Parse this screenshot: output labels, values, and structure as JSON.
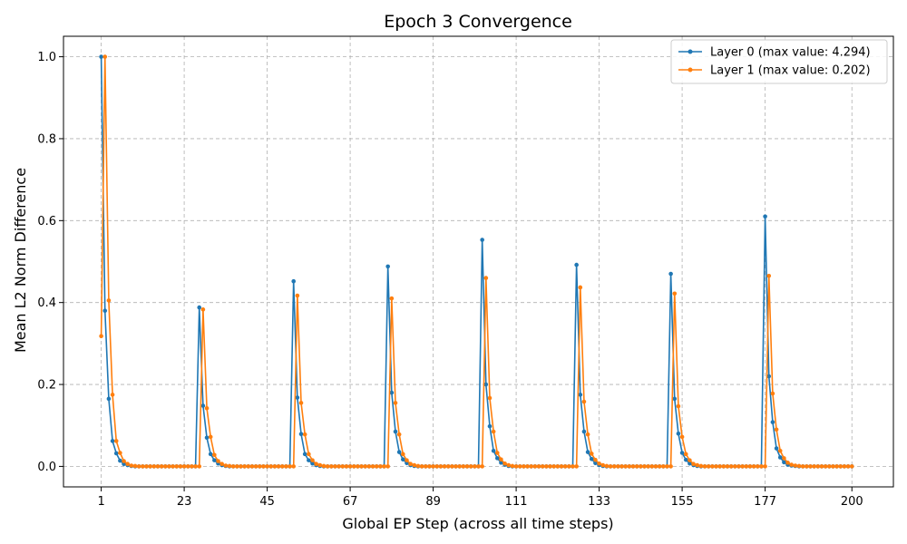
{
  "chart_data": {
    "type": "line",
    "title": "Epoch 3 Convergence",
    "xlabel": "Global EP Step (across all time steps)",
    "ylabel": "Mean L2 Norm Difference",
    "xlim": [
      -9,
      211
    ],
    "ylim": [
      -0.05,
      1.05
    ],
    "xticks": [
      1,
      23,
      45,
      67,
      89,
      111,
      133,
      155,
      177,
      200
    ],
    "yticks": [
      0.0,
      0.2,
      0.4,
      0.6,
      0.8,
      1.0
    ],
    "ytick_labels": [
      "0.0",
      "0.2",
      "0.4",
      "0.6",
      "0.8",
      "1.0"
    ],
    "grid": true,
    "legend_position": "top-right",
    "series": [
      {
        "name": "Layer 0 (max value: 4.294)",
        "color": "#1f77b4",
        "x": [
          1,
          2,
          3,
          4,
          5,
          6,
          7,
          8,
          9,
          10,
          11,
          12,
          13,
          14,
          15,
          16,
          17,
          18,
          19,
          20,
          21,
          22,
          23,
          24,
          25,
          26,
          27,
          28,
          29,
          30,
          31,
          32,
          33,
          34,
          35,
          36,
          37,
          38,
          39,
          40,
          41,
          42,
          43,
          44,
          45,
          46,
          47,
          48,
          49,
          50,
          51,
          52,
          53,
          54,
          55,
          56,
          57,
          58,
          59,
          60,
          61,
          62,
          63,
          64,
          65,
          66,
          67,
          68,
          69,
          70,
          71,
          72,
          73,
          74,
          75,
          76,
          77,
          78,
          79,
          80,
          81,
          82,
          83,
          84,
          85,
          86,
          87,
          88,
          89,
          90,
          91,
          92,
          93,
          94,
          95,
          96,
          97,
          98,
          99,
          100,
          101,
          102,
          103,
          104,
          105,
          106,
          107,
          108,
          109,
          110,
          111,
          112,
          113,
          114,
          115,
          116,
          117,
          118,
          119,
          120,
          121,
          122,
          123,
          124,
          125,
          126,
          127,
          128,
          129,
          130,
          131,
          132,
          133,
          134,
          135,
          136,
          137,
          138,
          139,
          140,
          141,
          142,
          143,
          144,
          145,
          146,
          147,
          148,
          149,
          150,
          151,
          152,
          153,
          154,
          155,
          156,
          157,
          158,
          159,
          160,
          161,
          162,
          163,
          164,
          165,
          166,
          167,
          168,
          169,
          170,
          171,
          172,
          173,
          174,
          175,
          176,
          177,
          178,
          179,
          180,
          181,
          182,
          183,
          184,
          185,
          186,
          187,
          188,
          189,
          190,
          191,
          192,
          193,
          194,
          195,
          196,
          197,
          198,
          199,
          200
        ],
        "y": [
          1.0,
          0.38,
          0.165,
          0.062,
          0.032,
          0.014,
          0.006,
          0.003,
          0.001,
          0,
          0,
          0,
          0,
          0,
          0,
          0,
          0,
          0,
          0,
          0,
          0,
          0,
          0,
          0,
          0,
          0,
          0.388,
          0.148,
          0.07,
          0.03,
          0.015,
          0.007,
          0.003,
          0.001,
          0,
          0,
          0,
          0,
          0,
          0,
          0,
          0,
          0,
          0,
          0,
          0,
          0,
          0,
          0,
          0,
          0,
          0.452,
          0.168,
          0.079,
          0.03,
          0.015,
          0.007,
          0.003,
          0.001,
          0,
          0,
          0,
          0,
          0,
          0,
          0,
          0,
          0,
          0,
          0,
          0,
          0,
          0,
          0,
          0,
          0,
          0.488,
          0.18,
          0.085,
          0.035,
          0.017,
          0.008,
          0.003,
          0.001,
          0,
          0,
          0,
          0,
          0,
          0,
          0,
          0,
          0,
          0,
          0,
          0,
          0,
          0,
          0,
          0,
          0,
          0.553,
          0.2,
          0.098,
          0.038,
          0.02,
          0.009,
          0.004,
          0.001,
          0,
          0,
          0,
          0,
          0,
          0,
          0,
          0,
          0,
          0,
          0,
          0,
          0,
          0,
          0,
          0,
          0,
          0.492,
          0.175,
          0.085,
          0.035,
          0.018,
          0.008,
          0.003,
          0.001,
          0,
          0,
          0,
          0,
          0,
          0,
          0,
          0,
          0,
          0,
          0,
          0,
          0,
          0,
          0,
          0,
          0,
          0.47,
          0.165,
          0.08,
          0.033,
          0.016,
          0.007,
          0.003,
          0.001,
          0,
          0,
          0,
          0,
          0,
          0,
          0,
          0,
          0,
          0,
          0,
          0,
          0,
          0,
          0,
          0,
          0,
          0.61,
          0.22,
          0.108,
          0.044,
          0.022,
          0.01,
          0.004,
          0.002,
          0.001,
          0,
          0,
          0,
          0,
          0,
          0,
          0,
          0,
          0,
          0,
          0,
          0,
          0,
          0,
          0
        ]
      },
      {
        "name": "Layer 1 (max value: 0.202)",
        "color": "#ff7f0e",
        "x": [
          1,
          2,
          3,
          4,
          5,
          6,
          7,
          8,
          9,
          10,
          11,
          12,
          13,
          14,
          15,
          16,
          17,
          18,
          19,
          20,
          21,
          22,
          23,
          24,
          25,
          26,
          27,
          28,
          29,
          30,
          31,
          32,
          33,
          34,
          35,
          36,
          37,
          38,
          39,
          40,
          41,
          42,
          43,
          44,
          45,
          46,
          47,
          48,
          49,
          50,
          51,
          52,
          53,
          54,
          55,
          56,
          57,
          58,
          59,
          60,
          61,
          62,
          63,
          64,
          65,
          66,
          67,
          68,
          69,
          70,
          71,
          72,
          73,
          74,
          75,
          76,
          77,
          78,
          79,
          80,
          81,
          82,
          83,
          84,
          85,
          86,
          87,
          88,
          89,
          90,
          91,
          92,
          93,
          94,
          95,
          96,
          97,
          98,
          99,
          100,
          101,
          102,
          103,
          104,
          105,
          106,
          107,
          108,
          109,
          110,
          111,
          112,
          113,
          114,
          115,
          116,
          117,
          118,
          119,
          120,
          121,
          122,
          123,
          124,
          125,
          126,
          127,
          128,
          129,
          130,
          131,
          132,
          133,
          134,
          135,
          136,
          137,
          138,
          139,
          140,
          141,
          142,
          143,
          144,
          145,
          146,
          147,
          148,
          149,
          150,
          151,
          152,
          153,
          154,
          155,
          156,
          157,
          158,
          159,
          160,
          161,
          162,
          163,
          164,
          165,
          166,
          167,
          168,
          169,
          170,
          171,
          172,
          173,
          174,
          175,
          176,
          177,
          178,
          179,
          180,
          181,
          182,
          183,
          184,
          185,
          186,
          187,
          188,
          189,
          190,
          191,
          192,
          193,
          194,
          195,
          196,
          197,
          198,
          199,
          200
        ],
        "y": [
          0.318,
          1.0,
          0.405,
          0.175,
          0.062,
          0.033,
          0.013,
          0.006,
          0.002,
          0.001,
          0,
          0,
          0,
          0,
          0,
          0,
          0,
          0,
          0,
          0,
          0,
          0,
          0,
          0,
          0,
          0,
          0,
          0.383,
          0.142,
          0.072,
          0.028,
          0.013,
          0.006,
          0.002,
          0.001,
          0,
          0,
          0,
          0,
          0,
          0,
          0,
          0,
          0,
          0,
          0,
          0,
          0,
          0,
          0,
          0,
          0,
          0.417,
          0.155,
          0.078,
          0.03,
          0.015,
          0.006,
          0.003,
          0.001,
          0,
          0,
          0,
          0,
          0,
          0,
          0,
          0,
          0,
          0,
          0,
          0,
          0,
          0,
          0,
          0,
          0,
          0.41,
          0.155,
          0.078,
          0.03,
          0.015,
          0.006,
          0.003,
          0.001,
          0,
          0,
          0,
          0,
          0,
          0,
          0,
          0,
          0,
          0,
          0,
          0,
          0,
          0,
          0,
          0,
          0,
          0.46,
          0.167,
          0.085,
          0.033,
          0.017,
          0.007,
          0.003,
          0.001,
          0,
          0,
          0,
          0,
          0,
          0,
          0,
          0,
          0,
          0,
          0,
          0,
          0,
          0,
          0,
          0,
          0,
          0.437,
          0.158,
          0.078,
          0.031,
          0.016,
          0.007,
          0.003,
          0.001,
          0,
          0,
          0,
          0,
          0,
          0,
          0,
          0,
          0,
          0,
          0,
          0,
          0,
          0,
          0,
          0,
          0,
          0.422,
          0.147,
          0.072,
          0.03,
          0.015,
          0.006,
          0.003,
          0.001,
          0,
          0,
          0,
          0,
          0,
          0,
          0,
          0,
          0,
          0,
          0,
          0,
          0,
          0,
          0,
          0,
          0,
          0.465,
          0.178,
          0.09,
          0.038,
          0.02,
          0.009,
          0.004,
          0.002,
          0.001,
          0,
          0,
          0,
          0,
          0,
          0,
          0,
          0,
          0,
          0,
          0,
          0,
          0,
          0
        ]
      }
    ]
  }
}
